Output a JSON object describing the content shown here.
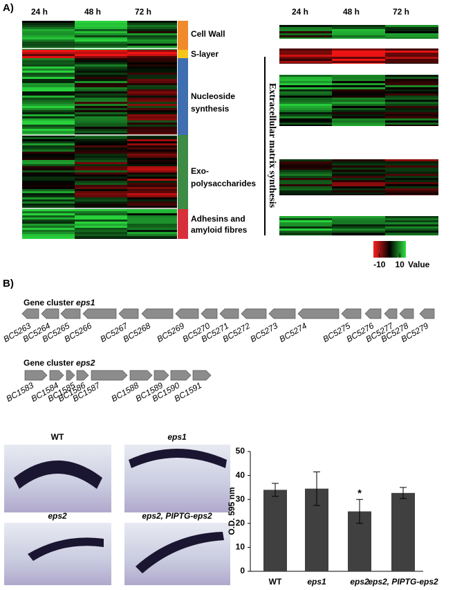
{
  "panel_a": {
    "label": "A)",
    "left_columns": [
      "24 h",
      "48 h",
      "72 h"
    ],
    "groups": [
      [
        "Cell Wall"
      ],
      [
        "S-layer"
      ],
      [
        "Nucleoside",
        "synthesis"
      ],
      [
        "Exo-",
        "polysaccharides"
      ],
      [
        "Adhesins and",
        "amyloid fibres"
      ]
    ],
    "right_columns": [
      "24 h",
      "48 h",
      "72 h"
    ],
    "side_label": "Extracellular matrix synthesis",
    "colorbar": {
      "lim": [
        -16,
        16
      ],
      "ticks": [
        -10,
        10
      ],
      "label": "Value"
    }
  },
  "panel_b": {
    "label": "B)",
    "clusters": [
      {
        "prefix": "Gene cluster",
        "name": "eps1",
        "genes": [
          "BC5263",
          "BC5264",
          "BC5265",
          "BC5266",
          "BC5267",
          "BC5268",
          "BC5269",
          "BC5270",
          "BC5271",
          "BC5272",
          "BC5273",
          "BC5274",
          "BC5275",
          "BC5276",
          "BC5277",
          "BC5278",
          "BC5279"
        ]
      },
      {
        "prefix": "Gene cluster",
        "name": "eps2",
        "genes": [
          "BC1583",
          "BC1584",
          "BC1585",
          "BC1586",
          "BC1587",
          "BC1588",
          "BC1589",
          "BC1590",
          "BC1591"
        ]
      }
    ],
    "photo_labels": [
      "WT",
      "eps1",
      "eps2",
      "eps2, PIPTG-eps2"
    ]
  },
  "chart_data": {
    "type": "bar",
    "y_label": "O.D. 595 nm",
    "categories": [
      "WT",
      "eps1",
      "eps2",
      "eps2, PIPTG-eps2"
    ],
    "values": [
      34,
      34.5,
      25,
      32.7
    ],
    "errors": [
      2.7,
      7,
      5,
      2.3
    ],
    "color": "#404040",
    "ylim": [
      0,
      50
    ],
    "yticks": [
      0,
      10,
      20,
      30,
      40,
      50
    ],
    "annotations": [
      {
        "text": "*",
        "category": "eps2"
      }
    ]
  }
}
